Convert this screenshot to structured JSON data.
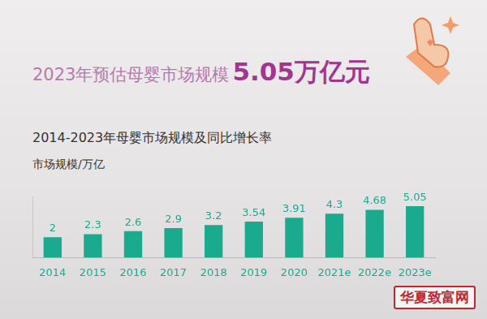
{
  "chart_data": {
    "type": "bar",
    "headline": [
      "2023年预估母婴市场规模",
      "5.05万亿元"
    ],
    "title": "2014-2023年母婴市场规模及同比增长率",
    "ylabel": "市场规模/万亿",
    "categories": [
      "2014",
      "2015",
      "2016",
      "2017",
      "2018",
      "2019",
      "2020",
      "2021e",
      "2022e",
      "2023e"
    ],
    "values": [
      2,
      2.3,
      2.6,
      2.9,
      3.2,
      3.54,
      3.91,
      4.3,
      4.68,
      5.05
    ],
    "color": "#1aab8e",
    "ylim": [
      0,
      6
    ],
    "grid": false,
    "data_labels": true,
    "tick_labels": "x",
    "watermark": "华夏致富网"
  }
}
